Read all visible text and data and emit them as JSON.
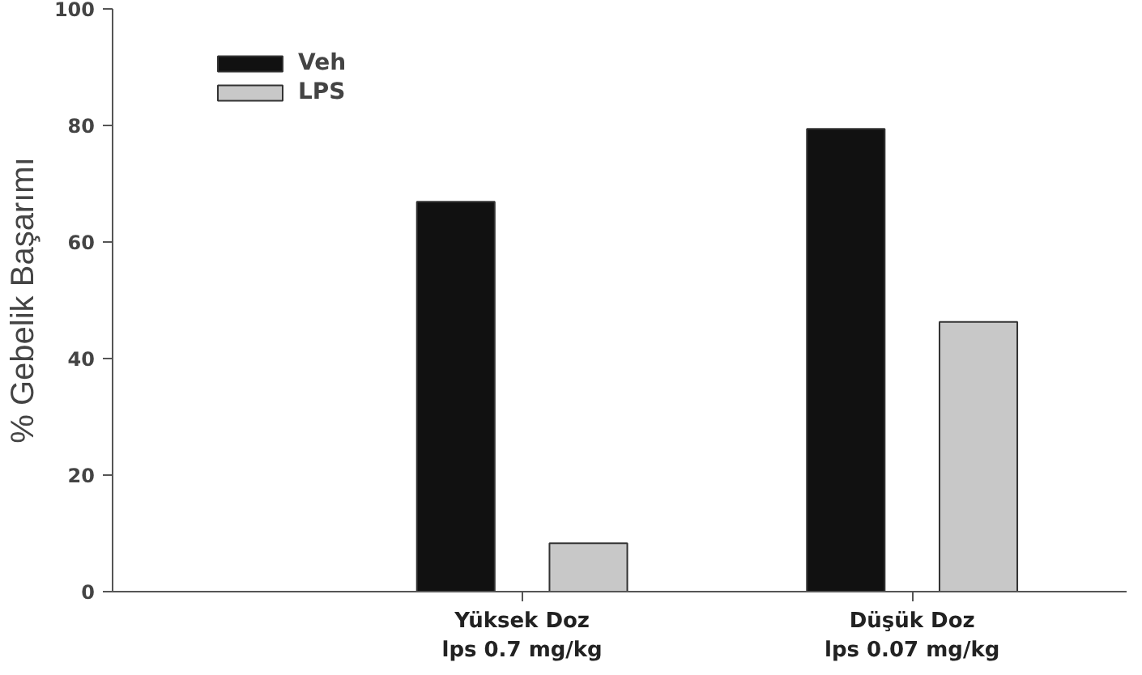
{
  "chart_data": {
    "type": "bar",
    "ylabel": "% Gebelik Başarımı",
    "categories": [
      "Yüksek Doz\nlps 0.7 mg/kg",
      "Düşük Doz\nlps 0.07 mg/kg"
    ],
    "series": [
      {
        "name": "Veh",
        "color": "#111111",
        "values": [
          66.9,
          79.4
        ]
      },
      {
        "name": "LPS",
        "color": "#c8c8c8",
        "values": [
          8.3,
          46.3
        ]
      }
    ],
    "ylim": [
      0,
      100
    ],
    "yticks": [
      0,
      20,
      40,
      60,
      80,
      100
    ],
    "grid": false,
    "legend": "top left"
  }
}
